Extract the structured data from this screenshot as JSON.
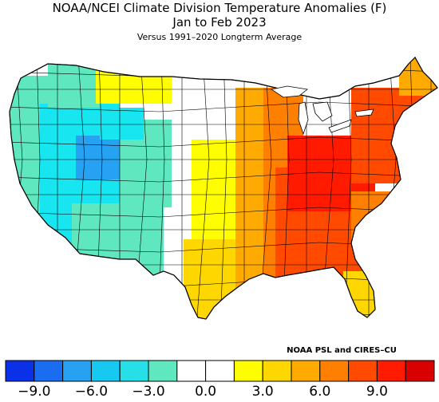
{
  "title_line1": "NOAA/NCEI Climate Division Temperature Anomalies (F)",
  "title_line2": "Jan to Feb 2023",
  "subtitle": "Versus 1991–2020 Longterm Average",
  "credit": "NOAA PSL and CIRES–CU",
  "colorbar": {
    "colors": [
      "#0b31e8",
      "#1a6cf0",
      "#27a1f2",
      "#17c8f0",
      "#27dfe6",
      "#5fe8c0",
      "#ffffff",
      "#ffffff",
      "#fffe00",
      "#ffd700",
      "#ffaa00",
      "#ff7f00",
      "#ff4a00",
      "#ff1a00",
      "#d90000"
    ],
    "ticks": [
      "−9.0",
      "−6.0",
      "−3.0",
      "0.0",
      "3.0",
      "6.0",
      "9.0"
    ]
  },
  "map_palette": {
    "land_cold": "#17e5f0",
    "land_cool": "#5fe8c0",
    "land_mid": "#27a1f2",
    "land_neutral": "#ffffff",
    "land_warm1": "#fffe00",
    "land_warm2": "#ffd700",
    "land_warm3": "#ffaa00",
    "land_warm4": "#ff7f00",
    "land_hot": "#ff4a00",
    "land_hottest": "#ff1a00"
  }
}
